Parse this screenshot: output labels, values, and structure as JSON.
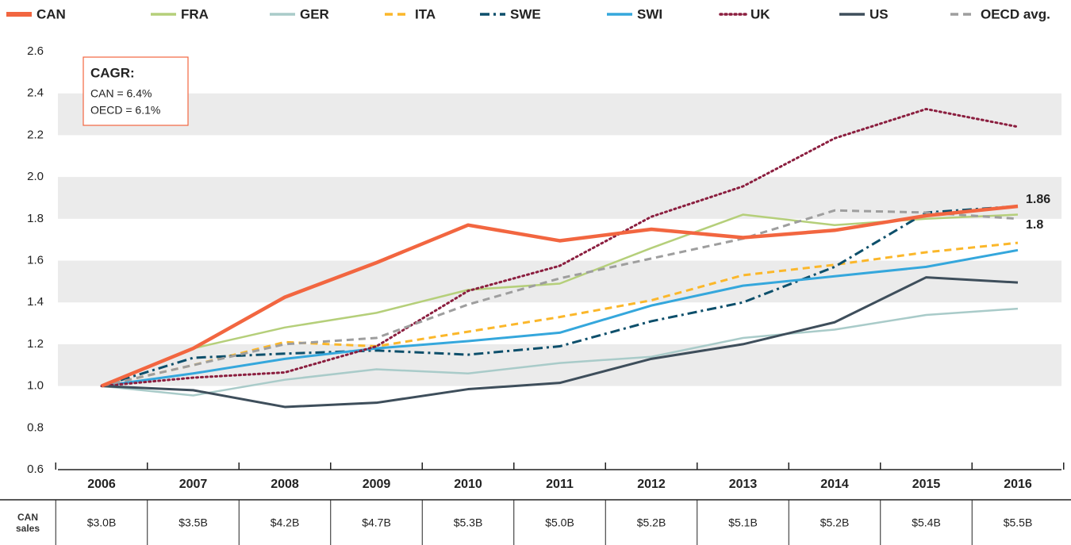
{
  "chart_data": {
    "type": "line",
    "categories": [
      "2006",
      "2007",
      "2008",
      "2009",
      "2010",
      "2011",
      "2012",
      "2013",
      "2014",
      "2015",
      "2016"
    ],
    "series": [
      {
        "name": "CAN",
        "color": "#f26640",
        "width": 4.5,
        "dash": "solid",
        "label_last": true,
        "values": [
          1.0,
          1.18,
          1.425,
          1.59,
          1.77,
          1.695,
          1.75,
          1.71,
          1.745,
          1.815,
          1.86
        ]
      },
      {
        "name": "FRA",
        "color": "#b5cf7a",
        "width": 2.5,
        "dash": "solid",
        "values": [
          1.0,
          1.18,
          1.28,
          1.35,
          1.46,
          1.49,
          1.66,
          1.82,
          1.77,
          1.8,
          1.82
        ]
      },
      {
        "name": "GER",
        "color": "#a9cbc9",
        "width": 2.5,
        "dash": "solid",
        "values": [
          1.0,
          0.955,
          1.03,
          1.08,
          1.06,
          1.11,
          1.14,
          1.23,
          1.27,
          1.34,
          1.37
        ]
      },
      {
        "name": "ITA",
        "color": "#fbb72a",
        "width": 3,
        "dash": "dashed",
        "values": [
          1.0,
          1.1,
          1.21,
          1.19,
          1.26,
          1.33,
          1.41,
          1.53,
          1.58,
          1.64,
          1.685
        ]
      },
      {
        "name": "SWE",
        "color": "#0d4f6b",
        "width": 3,
        "dash": "dashdot",
        "values": [
          1.0,
          1.135,
          1.155,
          1.17,
          1.15,
          1.19,
          1.31,
          1.4,
          1.57,
          1.83,
          1.86
        ]
      },
      {
        "name": "SWI",
        "color": "#35a7dc",
        "width": 3,
        "dash": "solid",
        "values": [
          1.0,
          1.06,
          1.13,
          1.18,
          1.215,
          1.255,
          1.385,
          1.48,
          1.525,
          1.57,
          1.65
        ]
      },
      {
        "name": "UK",
        "color": "#8b1e3f",
        "width": 3,
        "dash": "dotted",
        "values": [
          1.0,
          1.04,
          1.065,
          1.19,
          1.455,
          1.575,
          1.81,
          1.955,
          2.185,
          2.325,
          2.24
        ]
      },
      {
        "name": "US",
        "color": "#3e4e5b",
        "width": 3,
        "dash": "solid",
        "values": [
          1.0,
          0.98,
          0.9,
          0.92,
          0.985,
          1.015,
          1.13,
          1.2,
          1.305,
          1.52,
          1.495
        ]
      },
      {
        "name": "OECD avg.",
        "color": "#9e9e9e",
        "width": 3,
        "dash": "dashed",
        "label_last": true,
        "values": [
          1.0,
          1.1,
          1.2,
          1.23,
          1.39,
          1.515,
          1.61,
          1.705,
          1.84,
          1.83,
          1.8
        ]
      }
    ],
    "ylim": [
      0.6,
      2.6
    ],
    "yticks": [
      {
        "value": 0.6,
        "label": "0.6"
      },
      {
        "value": 0.8,
        "label": "0.8"
      },
      {
        "value": 1.0,
        "label": "1.0"
      },
      {
        "value": 1.2,
        "label": "1.2"
      },
      {
        "value": 1.4,
        "label": "1.4"
      },
      {
        "value": 1.6,
        "label": "1.6"
      },
      {
        "value": 1.8,
        "label": "1.8"
      },
      {
        "value": 2.0,
        "label": "2.0"
      },
      {
        "value": 2.2,
        "label": "2.2"
      },
      {
        "value": 2.4,
        "label": "2.4"
      },
      {
        "value": 2.6,
        "label": "2.6"
      }
    ],
    "grid": true,
    "legend": "top",
    "annotation": {
      "title": "CAGR:",
      "lines": [
        "CAN = 6.4%",
        "OECD = 6.1%"
      ]
    },
    "table": {
      "header": "CAN sales",
      "values": [
        "$3.0B",
        "$3.5B",
        "$4.2B",
        "$4.7B",
        "$5.3B",
        "$5.0B",
        "$5.2B",
        "$5.1B",
        "$5.2B",
        "$5.4B",
        "$5.5B"
      ]
    }
  }
}
